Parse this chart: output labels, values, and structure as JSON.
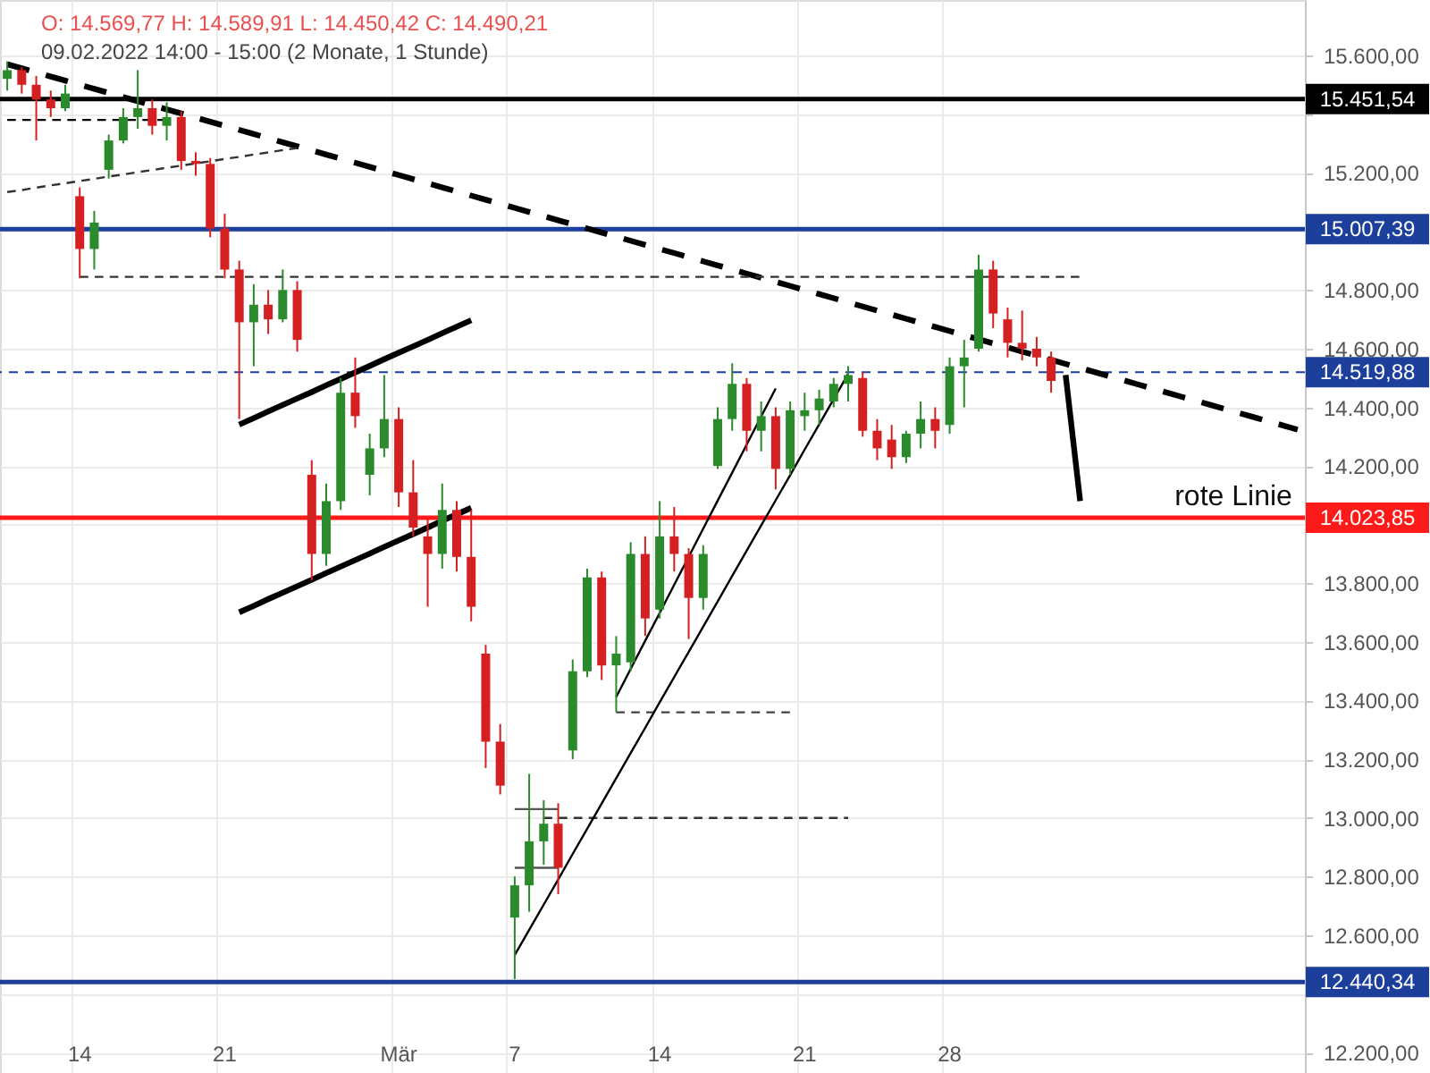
{
  "chart_data": {
    "type": "candlestick",
    "title": "O: 14.569,77 H: 14.589,91 L: 14.450,42 C: 14.490,21",
    "subtitle": "09.02.2022 14:00 - 15:00 (2 Monate, 1 Stunde)",
    "categories": [
      null,
      null,
      null,
      null,
      null,
      "14",
      null,
      null,
      null,
      null,
      null,
      null,
      null,
      null,
      null,
      "21",
      null,
      null,
      null,
      null,
      null,
      null,
      null,
      null,
      null,
      null,
      null,
      "Mär",
      null,
      null,
      null,
      null,
      null,
      null,
      null,
      "7",
      null,
      null,
      null,
      null,
      null,
      null,
      null,
      null,
      null,
      "14",
      null,
      null,
      null,
      null,
      null,
      null,
      null,
      null,
      null,
      "21",
      null,
      null,
      null,
      null,
      null,
      null,
      null,
      null,
      null,
      "28",
      null,
      null,
      null,
      null,
      null,
      null,
      null,
      null,
      null,
      null,
      null,
      null,
      null,
      null,
      null,
      null,
      null,
      null,
      null,
      null,
      null,
      null,
      null,
      null
    ],
    "ohlc": [
      [
        15520,
        15580,
        15480,
        15550
      ],
      [
        15550,
        15560,
        15470,
        15500
      ],
      [
        15500,
        15530,
        15310,
        15450
      ],
      [
        15450,
        15480,
        15390,
        15420
      ],
      [
        15420,
        15500,
        15410,
        15470
      ],
      [
        15120,
        15150,
        14840,
        14940
      ],
      [
        14940,
        15070,
        14870,
        15030
      ],
      [
        15210,
        15330,
        15180,
        15310
      ],
      [
        15310,
        15420,
        15300,
        15390
      ],
      [
        15390,
        15550,
        15350,
        15420
      ],
      [
        15420,
        15450,
        15330,
        15360
      ],
      [
        15360,
        15440,
        15310,
        15390
      ],
      [
        15390,
        15410,
        15210,
        15240
      ],
      [
        15240,
        15270,
        15190,
        15230
      ],
      [
        15230,
        15250,
        14980,
        15010
      ],
      [
        15010,
        15060,
        14840,
        14870
      ],
      [
        14870,
        14900,
        14360,
        14690
      ],
      [
        14690,
        14820,
        14540,
        14750
      ],
      [
        14750,
        14800,
        14650,
        14700
      ],
      [
        14700,
        14870,
        14690,
        14800
      ],
      [
        14800,
        14830,
        14590,
        14630
      ],
      [
        14170,
        14220,
        13810,
        13900
      ],
      [
        13900,
        14140,
        13860,
        14080
      ],
      [
        14080,
        14500,
        14050,
        14450
      ],
      [
        14450,
        14570,
        14330,
        14370
      ],
      [
        14170,
        14310,
        14100,
        14260
      ],
      [
        14260,
        14510,
        14230,
        14360
      ],
      [
        14360,
        14400,
        14060,
        14110
      ],
      [
        14110,
        14220,
        13960,
        13990
      ],
      [
        13960,
        14020,
        13720,
        13900
      ],
      [
        13900,
        14140,
        13850,
        14050
      ],
      [
        14050,
        14080,
        13840,
        13890
      ],
      [
        13890,
        14050,
        13670,
        13720
      ],
      [
        13560,
        13590,
        13170,
        13260
      ],
      [
        13260,
        13320,
        13080,
        13110
      ],
      [
        12660,
        12800,
        12450,
        12770
      ],
      [
        12770,
        13150,
        12680,
        12920
      ],
      [
        12920,
        13060,
        12840,
        12980
      ],
      [
        12980,
        13050,
        12740,
        12830
      ],
      [
        13230,
        13540,
        13200,
        13500
      ],
      [
        13500,
        13850,
        13480,
        13820
      ],
      [
        13820,
        13840,
        13470,
        13520
      ],
      [
        13520,
        13620,
        13360,
        13560
      ],
      [
        13530,
        13940,
        13500,
        13900
      ],
      [
        13900,
        13960,
        13620,
        13680
      ],
      [
        13710,
        14080,
        13680,
        13960
      ],
      [
        13960,
        14060,
        13840,
        13900
      ],
      [
        13900,
        13920,
        13610,
        13750
      ],
      [
        13750,
        13930,
        13710,
        13900
      ],
      [
        14200,
        14400,
        14190,
        14360
      ],
      [
        14360,
        14550,
        14320,
        14480
      ],
      [
        14480,
        14500,
        14250,
        14320
      ],
      [
        14320,
        14420,
        14250,
        14370
      ],
      [
        14370,
        14400,
        14120,
        14190
      ],
      [
        14190,
        14420,
        14170,
        14390
      ],
      [
        14370,
        14450,
        14320,
        14390
      ],
      [
        14390,
        14460,
        14340,
        14430
      ],
      [
        14420,
        14500,
        14400,
        14480
      ],
      [
        14480,
        14540,
        14420,
        14510
      ],
      [
        14500,
        14520,
        14300,
        14320
      ],
      [
        14320,
        14360,
        14220,
        14260
      ],
      [
        14290,
        14340,
        14190,
        14230
      ],
      [
        14230,
        14320,
        14210,
        14310
      ],
      [
        14310,
        14420,
        14260,
        14360
      ],
      [
        14360,
        14400,
        14260,
        14320
      ],
      [
        14340,
        14570,
        14310,
        14540
      ],
      [
        14540,
        14630,
        14400,
        14570
      ],
      [
        14600,
        14920,
        14590,
        14870
      ],
      [
        14870,
        14900,
        14670,
        14720
      ],
      [
        14700,
        14740,
        14570,
        14620
      ],
      [
        14620,
        14730,
        14560,
        14600
      ],
      [
        14600,
        14640,
        14540,
        14570
      ],
      [
        14570,
        14590,
        14450,
        14490
      ],
      null,
      null,
      null,
      null,
      null,
      null,
      null,
      null,
      null,
      null,
      null,
      null,
      null,
      null,
      null,
      null,
      null
    ],
    "colors": [
      "#2b8a2b",
      "#d42020",
      "#d42020",
      "#d42020",
      "#2b8a2b",
      "#d42020",
      "#2b8a2b",
      "#2b8a2b",
      "#2b8a2b",
      "#2b8a2b",
      "#d42020",
      "#2b8a2b",
      "#d42020",
      "#d42020",
      "#d42020",
      "#d42020",
      "#d42020",
      "#2b8a2b",
      "#d42020",
      "#2b8a2b",
      "#d42020",
      "#d42020",
      "#2b8a2b",
      "#2b8a2b",
      "#d42020",
      "#2b8a2b",
      "#2b8a2b",
      "#d42020",
      "#d42020",
      "#d42020",
      "#2b8a2b",
      "#d42020",
      "#d42020",
      "#d42020",
      "#d42020",
      "#2b8a2b",
      "#2b8a2b",
      "#2b8a2b",
      "#d42020",
      "#2b8a2b",
      "#2b8a2b",
      "#d42020",
      "#2b8a2b",
      "#2b8a2b",
      "#d42020",
      "#2b8a2b",
      "#d42020",
      "#d42020",
      "#2b8a2b",
      "#2b8a2b",
      "#2b8a2b",
      "#d42020",
      "#2b8a2b",
      "#d42020",
      "#2b8a2b",
      "#2b8a2b",
      "#2b8a2b",
      "#2b8a2b",
      "#2b8a2b",
      "#d42020",
      "#d42020",
      "#d42020",
      "#2b8a2b",
      "#2b8a2b",
      "#d42020",
      "#2b8a2b",
      "#2b8a2b",
      "#2b8a2b",
      "#d42020",
      "#d42020",
      "#d42020",
      "#d42020",
      "#d42020",
      null,
      null,
      null,
      null,
      null,
      null,
      null,
      null,
      null,
      null,
      null,
      null,
      null,
      null,
      null,
      null,
      null
    ],
    "series": [
      {
        "type": "line",
        "color": "#000000",
        "line_style": "dashed",
        "values": [
          15570,
          15556,
          15542,
          15528,
          15514,
          15500,
          15486,
          15472,
          15458,
          15444,
          15430,
          15416,
          15402,
          15388,
          15374,
          15360,
          15346,
          15332,
          15318,
          15304,
          15290,
          15276,
          15262,
          15248,
          15234,
          15220,
          15206,
          15192,
          15178,
          15164,
          15150,
          15136,
          15122,
          15108,
          15094,
          15080,
          15066,
          15052,
          15038,
          15024,
          15010,
          14996,
          14982,
          14968,
          14954,
          14940,
          14926,
          14912,
          14898,
          14884,
          14870,
          14856,
          14842,
          14828,
          14814,
          14800,
          14786,
          14772,
          14758,
          14744,
          14730,
          14716,
          14702,
          14688,
          14674,
          14660,
          14646,
          14632,
          14618,
          14604,
          14590,
          14576,
          14562,
          14548,
          14534,
          14520,
          14506,
          14492,
          14478,
          14464,
          14450,
          14436,
          14422,
          14408,
          14394,
          14380,
          14366,
          14352,
          14338,
          14324
        ]
      },
      {
        "type": "line",
        "color": "#000000",
        "values": [
          null,
          null,
          null,
          null,
          null,
          null,
          null,
          null,
          null,
          null,
          null,
          null,
          null,
          null,
          null,
          null,
          14341,
          14363,
          14386,
          14408,
          14430,
          14452,
          14475,
          14497,
          14519,
          14541,
          14564,
          14586,
          14608,
          14630,
          14653,
          14675,
          14697,
          null,
          null,
          null,
          null,
          null,
          null,
          null,
          null,
          null,
          null,
          null,
          null,
          null,
          null,
          null,
          null,
          null,
          null,
          null,
          null,
          null,
          null,
          null,
          null,
          null,
          null,
          null,
          null,
          null,
          null,
          null,
          null,
          null,
          null,
          null,
          null,
          null,
          null,
          null,
          null,
          null,
          null,
          null,
          null,
          null,
          null,
          null,
          null,
          null,
          null,
          null,
          null,
          null,
          null,
          null,
          null,
          null
        ]
      },
      {
        "type": "line",
        "color": "#000000",
        "values": [
          null,
          null,
          null,
          null,
          null,
          null,
          null,
          null,
          null,
          null,
          null,
          null,
          null,
          null,
          null,
          null,
          13701,
          13723,
          13746,
          13768,
          13790,
          13812,
          13835,
          13857,
          13879,
          13901,
          13924,
          13946,
          13968,
          13990,
          14013,
          14035,
          14057,
          null,
          null,
          null,
          null,
          null,
          null,
          null,
          null,
          null,
          null,
          null,
          null,
          null,
          null,
          null,
          null,
          null,
          null,
          null,
          null,
          null,
          null,
          null,
          null,
          null,
          null,
          null,
          null,
          null,
          null,
          null,
          null,
          null,
          null,
          null,
          null,
          null,
          null,
          null,
          null,
          null,
          null,
          null,
          null,
          null,
          null,
          null,
          null,
          null,
          null,
          null,
          null,
          null,
          null,
          null,
          null,
          null
        ]
      },
      {
        "type": "line",
        "color": "#000000",
        "values": [
          null,
          null,
          null,
          null,
          null,
          null,
          null,
          null,
          null,
          null,
          null,
          null,
          null,
          null,
          null,
          null,
          null,
          null,
          null,
          null,
          null,
          null,
          null,
          null,
          null,
          null,
          null,
          null,
          null,
          null,
          null,
          null,
          null,
          null,
          null,
          null,
          null,
          null,
          null,
          null,
          null,
          null,
          null,
          null,
          null,
          null,
          null,
          null,
          null,
          null,
          null,
          null,
          null,
          null,
          null,
          null,
          null,
          null,
          null,
          null,
          null,
          null,
          null,
          null,
          null,
          null,
          null,
          null,
          null,
          null,
          null,
          null,
          null,
          14510,
          14080,
          null,
          null,
          null,
          null,
          null,
          null,
          null,
          null,
          null,
          null,
          null,
          null,
          null,
          null,
          null
        ]
      },
      {
        "type": "line",
        "color": "#333333",
        "line_style": "dashed",
        "values": [
          15134,
          15141,
          15149,
          15157,
          15164,
          15172,
          15179,
          15187,
          15194,
          15202,
          15209,
          15217,
          15224,
          15232,
          15239,
          15247,
          15254,
          15262,
          15269,
          15277,
          15284,
          null,
          null,
          null,
          null,
          null,
          null,
          null,
          null,
          null,
          null,
          null,
          null,
          null,
          null,
          null,
          null,
          null,
          null,
          null,
          null,
          null,
          null,
          null,
          null,
          null,
          null,
          null,
          null,
          null,
          null,
          null,
          null,
          null,
          null,
          null,
          null,
          null,
          null,
          null,
          null,
          null,
          null,
          null,
          null,
          null,
          null,
          null,
          null,
          null,
          null,
          null,
          null,
          null,
          null,
          null,
          null,
          null,
          null,
          null,
          null,
          null,
          null,
          null,
          null,
          null,
          null,
          null,
          null,
          null
        ]
      },
      {
        "type": "line",
        "color": "#000000",
        "line_style": "dashed",
        "values": [
          15380,
          15380,
          15380,
          15380,
          15380,
          15380,
          15380,
          15380,
          15380,
          15380,
          15380,
          15380,
          null,
          null,
          null,
          null,
          null,
          null,
          null,
          null,
          null,
          null,
          null,
          null,
          null,
          null,
          null,
          null,
          null,
          null,
          null,
          null,
          null,
          null,
          null,
          null,
          null,
          null,
          null,
          null,
          null,
          null,
          null,
          null,
          null,
          null,
          null,
          null,
          null,
          null,
          null,
          null,
          null,
          null,
          null,
          null,
          null,
          null,
          null,
          null,
          null,
          null,
          null,
          null,
          null,
          null,
          null,
          null,
          null,
          null,
          null,
          null,
          null,
          null,
          null,
          null,
          null,
          null,
          null,
          null,
          null,
          null,
          null,
          null,
          null,
          null,
          null,
          null,
          null,
          null
        ]
      },
      {
        "type": "line",
        "color": "#333333",
        "line_style": "dashed",
        "values": [
          null,
          null,
          null,
          null,
          null,
          14845,
          14845,
          14845,
          14845,
          14845,
          14845,
          14845,
          14845,
          14845,
          14845,
          14845,
          14845,
          14845,
          14845,
          14845,
          14845,
          14845,
          14845,
          14845,
          14845,
          14845,
          14845,
          14845,
          14845,
          14845,
          14845,
          14845,
          14845,
          14845,
          14845,
          14845,
          14845,
          14845,
          14845,
          14845,
          14845,
          14845,
          14845,
          14845,
          14845,
          14845,
          14845,
          14845,
          14845,
          14845,
          14845,
          14845,
          14845,
          14845,
          14845,
          14845,
          14845,
          14845,
          14845,
          14845,
          14845,
          14845,
          14845,
          14845,
          14845,
          14845,
          14845,
          14845,
          14845,
          14845,
          14845,
          14845,
          14845,
          14845,
          14845,
          null,
          null,
          null,
          null,
          null,
          null,
          null,
          null,
          null,
          null,
          null,
          null,
          null,
          null,
          null
        ]
      },
      {
        "type": "line",
        "color": "#444444",
        "line_style": "dashed",
        "values": [
          null,
          null,
          null,
          null,
          null,
          null,
          null,
          null,
          null,
          null,
          null,
          null,
          null,
          null,
          null,
          null,
          null,
          null,
          null,
          null,
          null,
          null,
          null,
          null,
          null,
          null,
          null,
          null,
          null,
          null,
          null,
          null,
          null,
          null,
          null,
          null,
          null,
          null,
          null,
          null,
          null,
          null,
          13360,
          13360,
          13360,
          13360,
          13360,
          13360,
          13360,
          13360,
          13360,
          13360,
          13360,
          13360,
          13360,
          null,
          null,
          null,
          null,
          null,
          null,
          null,
          null,
          null,
          null,
          null,
          null,
          null,
          null,
          null,
          null,
          null,
          null,
          null,
          null,
          null,
          null,
          null,
          null,
          null,
          null,
          null,
          null,
          null,
          null,
          null,
          null,
          null,
          null,
          null
        ]
      },
      {
        "type": "line",
        "color": "#333333",
        "line_style": "dashed",
        "values": [
          null,
          null,
          null,
          null,
          null,
          null,
          null,
          null,
          null,
          null,
          null,
          null,
          null,
          null,
          null,
          null,
          null,
          null,
          null,
          null,
          null,
          null,
          null,
          null,
          null,
          null,
          null,
          null,
          null,
          null,
          null,
          null,
          null,
          null,
          null,
          null,
          null,
          13000,
          13000,
          13000,
          13000,
          13000,
          13000,
          13000,
          13000,
          13000,
          13000,
          13000,
          13000,
          13000,
          13000,
          13000,
          13000,
          13000,
          13000,
          13000,
          13000,
          13000,
          13000,
          null,
          null,
          null,
          null,
          null,
          null,
          null,
          null,
          null,
          null,
          null,
          null,
          null,
          null,
          null,
          null,
          null,
          null,
          null,
          null,
          null,
          null,
          null,
          null,
          null,
          null,
          null,
          null,
          null,
          null,
          null
        ]
      },
      {
        "type": "line",
        "color": "#000000",
        "values": [
          null,
          null,
          null,
          null,
          null,
          null,
          null,
          null,
          null,
          null,
          null,
          null,
          null,
          null,
          null,
          null,
          null,
          null,
          null,
          null,
          null,
          null,
          null,
          null,
          null,
          null,
          null,
          null,
          null,
          null,
          null,
          null,
          null,
          null,
          null,
          null,
          null,
          null,
          null,
          null,
          null,
          null,
          13412,
          13508,
          13604,
          13699,
          13795,
          13890,
          13986,
          14082,
          14177,
          14273,
          14369,
          14464,
          null,
          null,
          null,
          null,
          null,
          null,
          null,
          null,
          null,
          null,
          null,
          null,
          null,
          null,
          null,
          null,
          null,
          null,
          null,
          null,
          null,
          null,
          null,
          null,
          null,
          null,
          null,
          null,
          null,
          null,
          null,
          null,
          null,
          null,
          null,
          null
        ]
      },
      {
        "type": "line",
        "color": "#000000",
        "values": [
          null,
          null,
          null,
          null,
          null,
          null,
          null,
          null,
          null,
          null,
          null,
          null,
          null,
          null,
          null,
          null,
          null,
          null,
          null,
          null,
          null,
          null,
          null,
          null,
          null,
          null,
          null,
          null,
          null,
          null,
          null,
          null,
          null,
          null,
          null,
          12532,
          12618,
          12704,
          12790,
          12877,
          12963,
          13049,
          13135,
          13221,
          13307,
          13394,
          13480,
          13566,
          13652,
          13738,
          13825,
          13911,
          13997,
          14083,
          14169,
          14256,
          14342,
          14428,
          14514,
          null,
          null,
          null,
          null,
          null,
          null,
          null,
          null,
          null,
          null,
          null,
          null,
          null,
          null,
          null,
          null,
          null,
          null,
          null,
          null,
          null,
          null,
          null,
          null,
          null,
          null,
          null,
          null,
          null,
          null,
          null
        ]
      },
      {
        "type": "line",
        "color": "#555555",
        "values": [
          null,
          null,
          null,
          null,
          null,
          null,
          null,
          null,
          null,
          null,
          null,
          null,
          null,
          null,
          null,
          null,
          null,
          null,
          null,
          null,
          null,
          null,
          null,
          null,
          null,
          null,
          null,
          null,
          null,
          null,
          null,
          null,
          null,
          null,
          null,
          13030,
          13030,
          13030,
          13030,
          null,
          null,
          null,
          null,
          null,
          null,
          null,
          null,
          null,
          null,
          null,
          null,
          null,
          null,
          null,
          null,
          null,
          null,
          null,
          null,
          null,
          null,
          null,
          null,
          null,
          null,
          null,
          null,
          null,
          null,
          null,
          null,
          null,
          null,
          null,
          null,
          null,
          null,
          null,
          null,
          null,
          null,
          null,
          null,
          null,
          null,
          null,
          null,
          null,
          null,
          null
        ]
      },
      {
        "type": "line",
        "color": "#555555",
        "values": [
          null,
          null,
          null,
          null,
          null,
          null,
          null,
          null,
          null,
          null,
          null,
          null,
          null,
          null,
          null,
          null,
          null,
          null,
          null,
          null,
          null,
          null,
          null,
          null,
          null,
          null,
          null,
          null,
          null,
          null,
          null,
          null,
          null,
          null,
          null,
          12830,
          12830,
          12830,
          12830,
          null,
          null,
          null,
          null,
          null,
          null,
          null,
          null,
          null,
          null,
          null,
          null,
          null,
          null,
          null,
          null,
          null,
          null,
          null,
          null,
          null,
          null,
          null,
          null,
          null,
          null,
          null,
          null,
          null,
          null,
          null,
          null,
          null,
          null,
          null,
          null,
          null,
          null,
          null,
          null,
          null,
          null,
          null,
          null,
          null,
          null,
          null,
          null,
          null,
          null,
          null
        ]
      }
    ],
    "ref_lines": [
      {
        "axis": "y",
        "value": 15451.54,
        "label": "15.451,54",
        "color": "#000000"
      },
      {
        "axis": "y",
        "value": 15007.39,
        "label": "15.007,39",
        "color": "#1d3f9c"
      },
      {
        "axis": "y",
        "value": 14519.88,
        "label": "14.519,88",
        "color": "#1d3f9c",
        "line_style": "dashed"
      },
      {
        "axis": "y",
        "value": 14023.85,
        "label": "14.023,85",
        "color": "#ff1a1a"
      },
      {
        "axis": "y",
        "value": 12440.34,
        "label": "12.440,34",
        "color": "#1d3f9c"
      }
    ],
    "annotations": [
      {
        "text": "rote Linie",
        "y": 14023.85
      }
    ],
    "ylim": [
      12130,
      15789
    ],
    "yticks": [
      {
        "value": 12200,
        "label": "12.200,00"
      },
      {
        "value": 12400,
        "label": null
      },
      {
        "value": 12600,
        "label": "12.600,00"
      },
      {
        "value": 12800,
        "label": "12.800,00"
      },
      {
        "value": 13000,
        "label": "13.000,00"
      },
      {
        "value": 13200,
        "label": "13.200,00"
      },
      {
        "value": 13400,
        "label": "13.400,00"
      },
      {
        "value": 13600,
        "label": "13.600,00"
      },
      {
        "value": 13800,
        "label": "13.800,00"
      },
      {
        "value": 14000,
        "label": null
      },
      {
        "value": 14200,
        "label": "14.200,00"
      },
      {
        "value": 14400,
        "label": "14.400,00"
      },
      {
        "value": 14600,
        "label": "14.600,00"
      },
      {
        "value": 14800,
        "label": "14.800,00"
      },
      {
        "value": 15000,
        "label": null
      },
      {
        "value": 15200,
        "label": "15.200,00"
      },
      {
        "value": 15400,
        "label": null
      },
      {
        "value": 15600,
        "label": "15.600,00"
      }
    ],
    "grid": true
  }
}
